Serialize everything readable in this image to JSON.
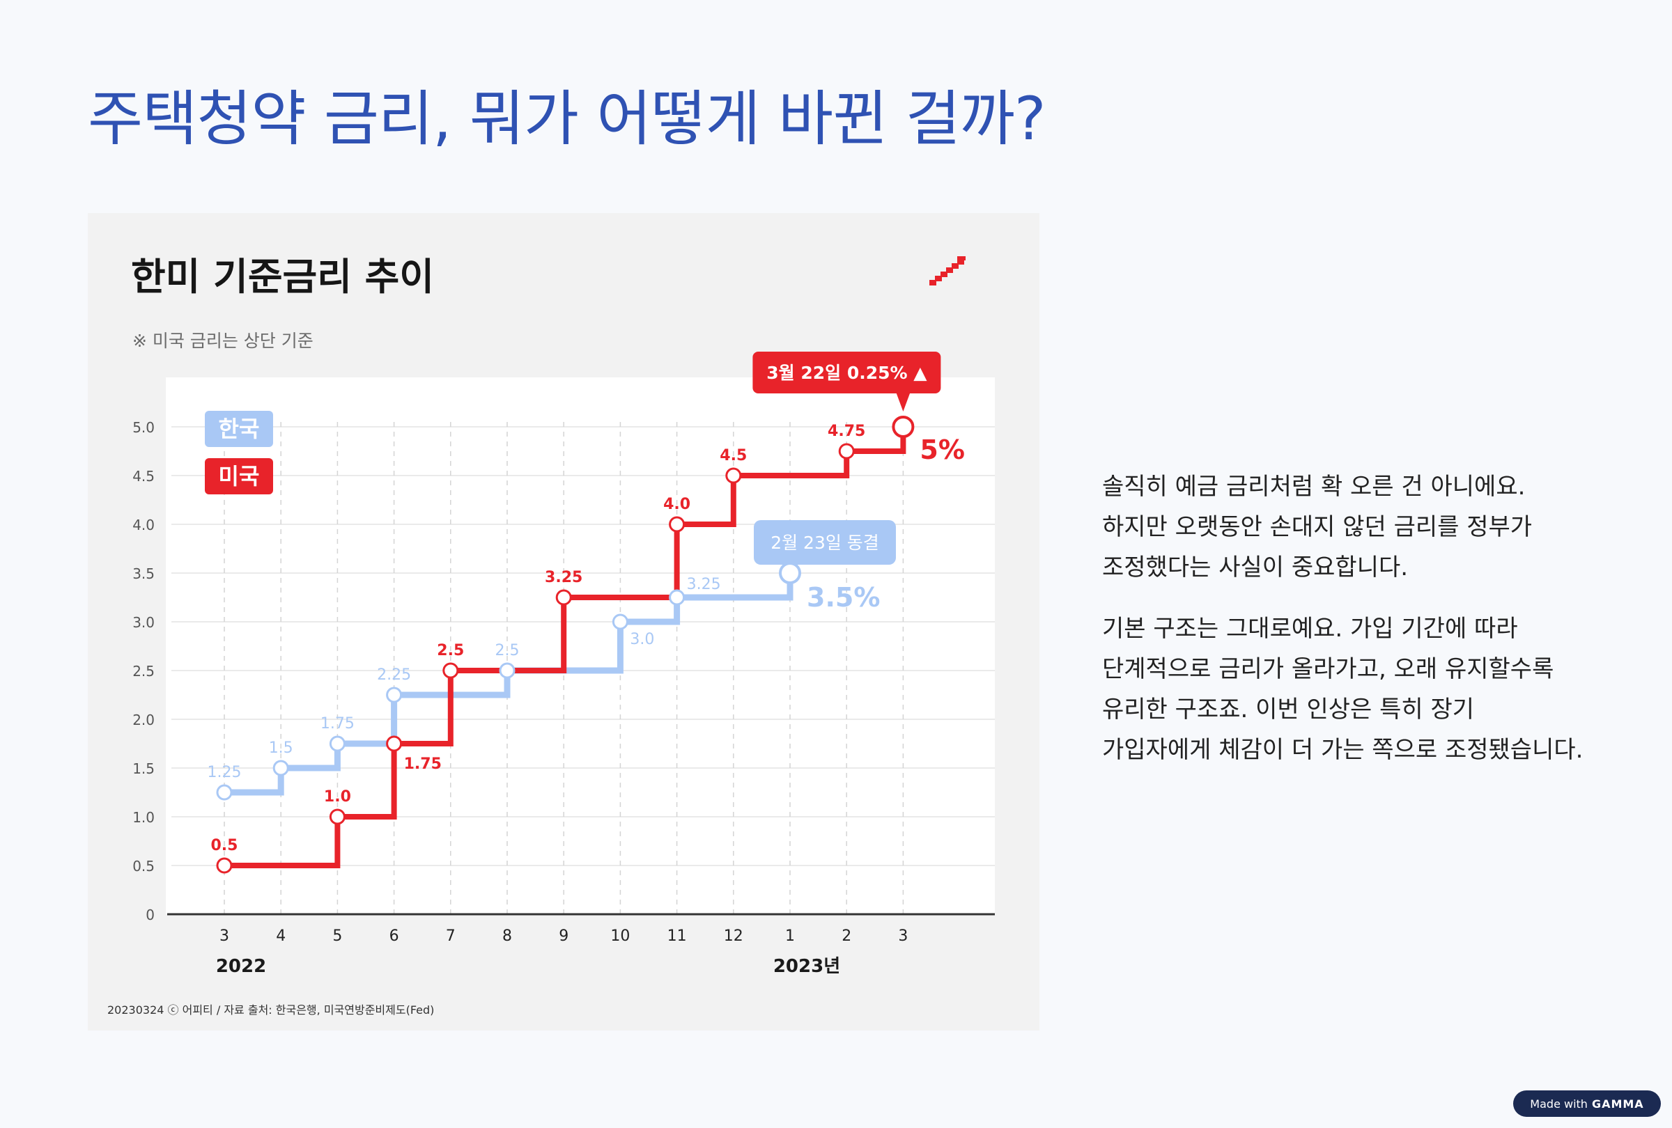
{
  "slide": {
    "title": "주택청약 금리, 뭐가 어떻게 바뀐 걸까?",
    "paragraphs": [
      "솔직히 예금 금리처럼 확 오른 건 아니에요. 하지만 오랫동안 손대지 않던 금리를 정부가 조정했다는 사실이 중요합니다.",
      "기본 구조는 그대로예요. 가입 기간에 따라 단계적으로 금리가 올라가고, 오래 유지할수록 유리한 구조죠. 이번 인상은 특히 장기 가입자에게 체감이 더 가는 쪽으로 조정됐습니다."
    ],
    "badge": {
      "prefix": "Made with",
      "brand": "GAMMA"
    }
  },
  "chart_data": {
    "type": "line",
    "step": true,
    "title": "한미 기준금리 추이",
    "subtitle": "※ 미국 금리는 상단 기준",
    "categories": [
      "3",
      "4",
      "5",
      "6",
      "7",
      "8",
      "9",
      "10",
      "11",
      "12",
      "1",
      "2",
      "3"
    ],
    "year_labels": [
      {
        "text": "2022",
        "at": "3"
      },
      {
        "text": "2023년",
        "at": "1"
      }
    ],
    "yticks": [
      "0",
      "0.5",
      "1.0",
      "1.5",
      "2.0",
      "2.5",
      "3.0",
      "3.5",
      "4.0",
      "4.5",
      "5.0"
    ],
    "ylim": [
      0,
      5.0
    ],
    "grid": true,
    "legend_position": "top-left",
    "series": [
      {
        "name": "한국",
        "color": "#a9c8f5",
        "points": [
          {
            "x": "3",
            "y": 1.25,
            "label": "1.25"
          },
          {
            "x": "4",
            "y": 1.5,
            "label": "1.5"
          },
          {
            "x": "5",
            "y": 1.75,
            "label": "1.75"
          },
          {
            "x": "6",
            "y": 2.25,
            "label": "2.25"
          },
          {
            "x": "8",
            "y": 2.5,
            "label": "2.5"
          },
          {
            "x": "10",
            "y": 3.0,
            "label": "3.0"
          },
          {
            "x": "11",
            "y": 3.25,
            "label": "3.25"
          },
          {
            "x": "1",
            "y": 3.5,
            "label": ""
          }
        ],
        "end_label": "3.5%",
        "callout": "2월 23일 동결"
      },
      {
        "name": "미국",
        "color": "#e8232a",
        "points": [
          {
            "x": "3",
            "y": 0.5,
            "label": "0.5"
          },
          {
            "x": "5",
            "y": 1.0,
            "label": "1.0"
          },
          {
            "x": "6",
            "y": 1.75,
            "label": "1.75"
          },
          {
            "x": "7",
            "y": 2.5,
            "label": "2.5"
          },
          {
            "x": "9",
            "y": 3.25,
            "label": "3.25"
          },
          {
            "x": "11",
            "y": 4.0,
            "label": "4.0"
          },
          {
            "x": "12",
            "y": 4.5,
            "label": "4.5"
          },
          {
            "x": "2",
            "y": 4.75,
            "label": "4.75"
          },
          {
            "x": "3",
            "y": 5.0,
            "label": ""
          }
        ],
        "end_label": "5%",
        "callout": "3월 22일 0.25% ▲"
      }
    ],
    "source": "20230324 ⓒ 어피티 / 자료 출처: 한국은행, 미국연방준비제도(Fed)"
  }
}
